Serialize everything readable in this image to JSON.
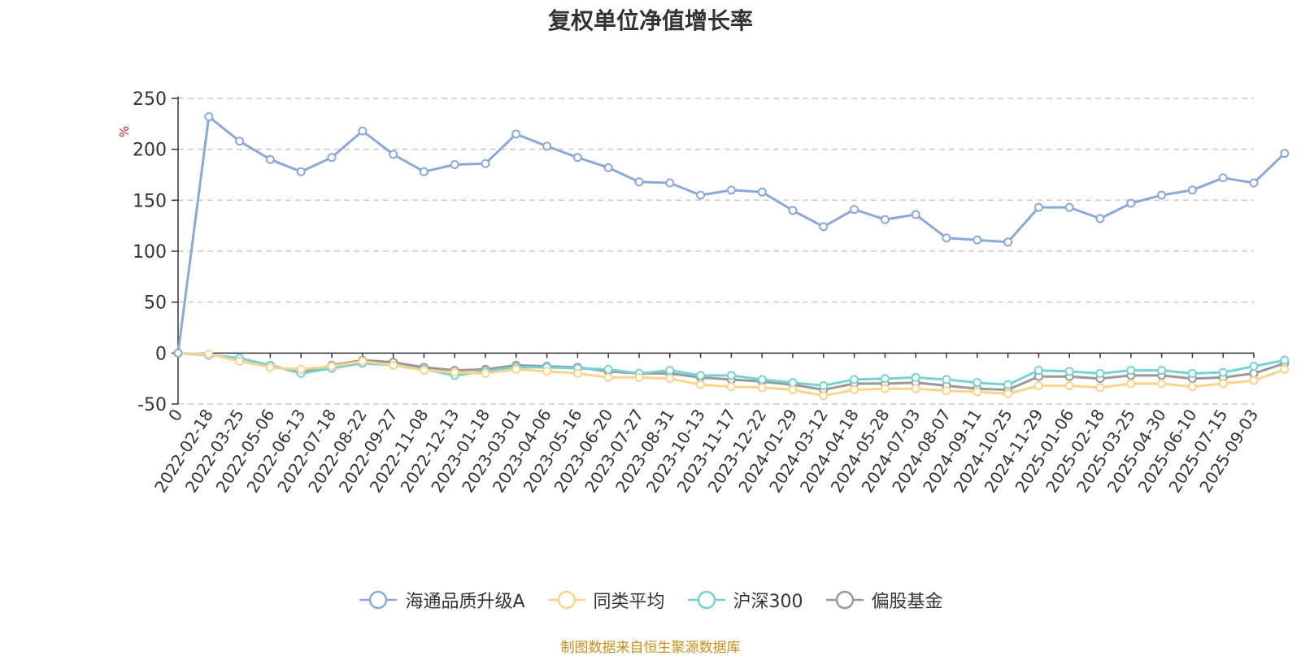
{
  "chart_data": {
    "type": "line",
    "title": "复权单位净值增长率",
    "ylabel": "%",
    "xlabel": "",
    "ylim": [
      -50,
      250
    ],
    "yticks": [
      250,
      200,
      150,
      100,
      50,
      0,
      -50
    ],
    "grid": true,
    "legend_position": "bottom",
    "x_ticks": [
      "0",
      "2022-02-18",
      "2022-03-25",
      "2022-05-06",
      "2022-06-13",
      "2022-07-18",
      "2022-08-22",
      "2022-09-27",
      "2022-11-08",
      "2022-12-13",
      "2023-01-18",
      "2023-03-01",
      "2023-04-06",
      "2023-05-16",
      "2023-06-20",
      "2023-07-27",
      "2023-08-31",
      "2023-10-13",
      "2023-11-17",
      "2023-12-22",
      "2024-01-29",
      "2024-03-12",
      "2024-04-18",
      "2024-05-28",
      "2024-07-03",
      "2024-08-07",
      "2024-09-11",
      "2024-10-25",
      "2024-11-29",
      "2025-01-06",
      "2025-02-18",
      "2025-03-25",
      "2025-04-30",
      "2025-06-10",
      "2025-07-15",
      "2025-09-03"
    ],
    "series": [
      {
        "name": "海通品质升级A",
        "color": "#8aa9d9",
        "values": [
          0,
          232,
          208,
          190,
          178,
          192,
          218,
          195,
          178,
          185,
          186,
          215,
          203,
          192,
          182,
          168,
          167,
          155,
          160,
          158,
          140,
          124,
          141,
          131,
          136,
          113,
          111,
          109,
          143,
          143,
          132,
          147,
          155,
          160,
          172,
          167,
          196
        ]
      },
      {
        "name": "同类平均",
        "color": "#f9d48c",
        "values": [
          0,
          -1,
          -8,
          -14,
          -16,
          -13,
          -8,
          -12,
          -17,
          -19,
          -20,
          -16,
          -18,
          -20,
          -24,
          -24,
          -25,
          -31,
          -33,
          -34,
          -36,
          -42,
          -36,
          -35,
          -35,
          -37,
          -38,
          -40,
          -32,
          -32,
          -34,
          -30,
          -30,
          -33,
          -30,
          -27,
          -16
        ]
      },
      {
        "name": "沪深300",
        "color": "#78d2d2",
        "values": [
          0,
          -2,
          -5,
          -12,
          -20,
          -15,
          -10,
          -12,
          -16,
          -22,
          -18,
          -14,
          -14,
          -15,
          -16,
          -20,
          -17,
          -22,
          -22,
          -26,
          -29,
          -32,
          -26,
          -25,
          -24,
          -26,
          -29,
          -31,
          -17,
          -18,
          -20,
          -17,
          -17,
          -20,
          -19,
          -13,
          -7
        ]
      },
      {
        "name": "偏股基金",
        "color": "#999999",
        "values": [
          0,
          -2,
          -5,
          -12,
          -19,
          -12,
          -7,
          -9,
          -14,
          -17,
          -16,
          -12,
          -13,
          -14,
          -18,
          -20,
          -20,
          -24,
          -26,
          -28,
          -31,
          -36,
          -30,
          -30,
          -29,
          -32,
          -35,
          -36,
          -23,
          -23,
          -25,
          -22,
          -22,
          -25,
          -24,
          -20,
          -10
        ]
      }
    ]
  },
  "source": "制图数据来自恒生聚源数据库"
}
